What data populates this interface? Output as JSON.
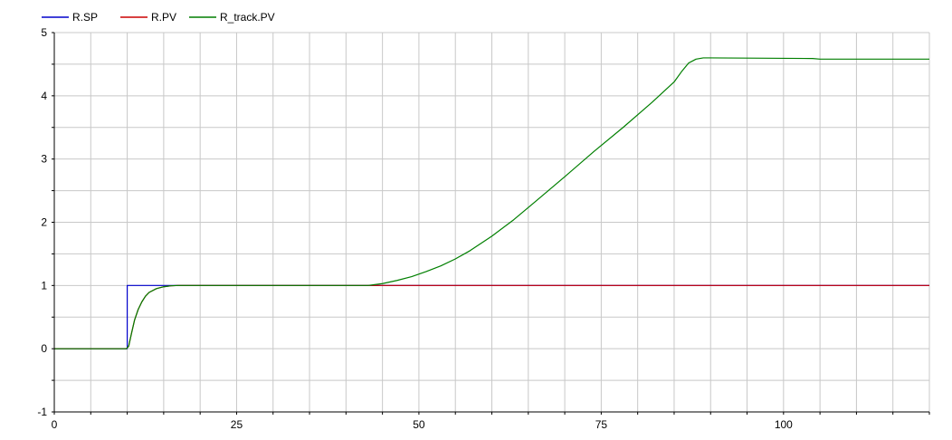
{
  "chart_data": {
    "type": "line",
    "title": "",
    "xlabel": "",
    "ylabel": "",
    "xlim": [
      0,
      120
    ],
    "ylim": [
      -1,
      5
    ],
    "x_ticks": [
      0,
      25,
      50,
      75,
      100
    ],
    "y_ticks": [
      -1,
      0,
      1,
      2,
      3,
      4,
      5
    ],
    "x_tick_labels": [
      "0",
      "25",
      "50",
      "75",
      "100"
    ],
    "y_tick_labels": [
      "-1",
      "0",
      "1",
      "2",
      "3",
      "4",
      "5"
    ],
    "x_minor_step": 5,
    "y_minor_step": 0.5,
    "grid": true,
    "legend_position": "top-left",
    "series": [
      {
        "name": "R.SP",
        "color": "#0000cc",
        "points": [
          [
            0,
            0
          ],
          [
            10,
            0
          ],
          [
            10,
            1
          ],
          [
            120,
            1
          ]
        ]
      },
      {
        "name": "R.PV",
        "color": "#cc0000",
        "points": [
          [
            0,
            0
          ],
          [
            9.9,
            0
          ],
          [
            10.2,
            0.04
          ],
          [
            10.6,
            0.25
          ],
          [
            11,
            0.45
          ],
          [
            11.5,
            0.62
          ],
          [
            12,
            0.74
          ],
          [
            12.5,
            0.83
          ],
          [
            13,
            0.89
          ],
          [
            14,
            0.95
          ],
          [
            15,
            0.98
          ],
          [
            16,
            0.995
          ],
          [
            17,
            1
          ],
          [
            120,
            1
          ]
        ]
      },
      {
        "name": "R_track.PV",
        "color": "#007f00",
        "points": [
          [
            0,
            0
          ],
          [
            9.9,
            0
          ],
          [
            10.2,
            0.04
          ],
          [
            10.6,
            0.25
          ],
          [
            11,
            0.45
          ],
          [
            11.5,
            0.62
          ],
          [
            12,
            0.74
          ],
          [
            12.5,
            0.83
          ],
          [
            13,
            0.89
          ],
          [
            14,
            0.95
          ],
          [
            15,
            0.98
          ],
          [
            16,
            0.995
          ],
          [
            17,
            1
          ],
          [
            43,
            1
          ],
          [
            45,
            1.03
          ],
          [
            47,
            1.08
          ],
          [
            49,
            1.14
          ],
          [
            51,
            1.22
          ],
          [
            53,
            1.31
          ],
          [
            55,
            1.42
          ],
          [
            57,
            1.55
          ],
          [
            60,
            1.78
          ],
          [
            63,
            2.04
          ],
          [
            66,
            2.33
          ],
          [
            70,
            2.72
          ],
          [
            74,
            3.12
          ],
          [
            78,
            3.5
          ],
          [
            82,
            3.9
          ],
          [
            85,
            4.22
          ],
          [
            86,
            4.38
          ],
          [
            87,
            4.52
          ],
          [
            88,
            4.58
          ],
          [
            89,
            4.6
          ],
          [
            90,
            4.6
          ],
          [
            104,
            4.59
          ],
          [
            105,
            4.58
          ],
          [
            120,
            4.58
          ]
        ]
      }
    ]
  }
}
